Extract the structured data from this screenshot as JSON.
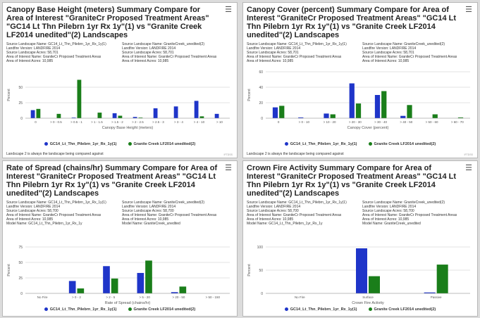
{
  "colors": {
    "series1": "#1f35c9",
    "series2": "#1a7e1a"
  },
  "icons": {
    "menu": "hamburger-menu-icon"
  },
  "panels": [
    {
      "title": "Canopy Base Height (meters) Summary Compare for Area of Interest \"GraniteCr Proposed Treatment Areas\" \"GC14 Lt Thn Pilebrn 1yr Rx 1y\"(1) vs \"Granite Creek LF2014 unedited\"(2) Landscapes",
      "meta": [
        [
          "Source Landscape Name: GC14_Lt_Thn_Pilebrn_1yr_Rx_1y(1)",
          "Source Landscape Name: GraniteCreek_unedited(2)"
        ],
        [
          "Landfire Version: LANDFIRE 2014",
          "Landfire Version: LANDFIRE 2014"
        ],
        [
          "Source Landscape Acres: 58,701",
          "Source Landscape Acres: 58,701"
        ],
        [
          "Area of Interest Name: GraniteCr Proposed Treatment Areas",
          "Area of Interest Name: GraniteCr Proposed Treatment Areas"
        ],
        [
          "Area of Interest Acres: 10,985",
          "Area of Interest Acres: 10,985"
        ]
      ],
      "legend": [
        "GC14_Lt_Thn_Pilebrn_1yr_Rx_1y(1)",
        "Granite Creek LF2014 unedited(2)"
      ],
      "footnote": "Landscape 2 is always the landscape being compared against",
      "credit": "IFTDSS"
    },
    {
      "title": "Canopy Cover (percent) Summary Compare for Area of Interest \"GraniteCr Proposed Treatment Areas\" \"GC14 Lt Thn Pilebrn 1yr Rx 1y\"(1) vs \"Granite Creek LF2014 unedited\"(2) Landscapes",
      "meta": [
        [
          "Source Landscape Name: GC14_Lt_Thn_Pilebrn_1yr_Rx_1y(1)",
          "Source Landscape Name: GraniteCreek_unedited(2)"
        ],
        [
          "Landfire Version: LANDFIRE 2014",
          "Landfire Version: LANDFIRE 2014"
        ],
        [
          "Source Landscape Acres: 58,701",
          "Source Landscape Acres: 58,701"
        ],
        [
          "Area of Interest Name: GraniteCr Proposed Treatment Areas",
          "Area of Interest Name: GraniteCr Proposed Treatment Areas"
        ],
        [
          "Area of Interest Acres: 10,985",
          "Area of Interest Acres: 10,985"
        ]
      ],
      "legend": [
        "GC14_Lt_Thn_Pilebrn_1yr_Rx_1y(1)",
        "Granite Creek LF2014 unedited(2)"
      ],
      "footnote": "Landscape 2 is always the landscape being compared against",
      "credit": "IFTDSS"
    },
    {
      "title": "Rate of Spread (chains/hr) Summary Compare for Area of Interest \"GraniteCr Proposed Treatment Areas\" \"GC14 Lt Thn Pilebrn 1yr Rx 1y\"(1) vs \"Granite Creek LF2014 unedited\"(2) Landscapes",
      "meta": [
        [
          "Source Landscape Name: GC14_Lt_Thn_Pilebrn_1yr_Rx_1y(1)",
          "Source Landscape Name: GraniteCreek_unedited(2)"
        ],
        [
          "Landfire Version: LANDFIRE 2014",
          "Landfire Version: LANDFIRE 2014"
        ],
        [
          "Source Landscape Acres: 58,700",
          "Source Landscape Acres: 58,700"
        ],
        [
          "Area of Interest Name: GraniteCr Proposed Treatment Areas",
          "Area of Interest Name: GraniteCr Proposed Treatment Areas"
        ],
        [
          "Area of Interest Acres: 10,985",
          "Area of Interest Acres: 10,985"
        ],
        [
          "Model Name: GC14_Lt_Thn_Pilebrn_1yr_Rx_1y",
          "Model Name: GraniteCreek_unedited"
        ]
      ],
      "legend": [
        "GC14_Lt_Thn_Pilebrn_1yr_Rx_1y(1)",
        "Granite Creek LF2014 unedited(2)"
      ]
    },
    {
      "title": "Crown Fire Activity Summary Compare for Area of Interest \"GraniteCr Proposed Treatment Areas\" \"GC14 Lt Thn Pilebrn 1yr Rx 1y\"(1) vs \"Granite Creek LF2014 unedited\"(2) Landscapes",
      "meta": [
        [
          "Source Landscape Name: GC14_Lt_Thn_Pilebrn_1yr_Rx_1y(1)",
          "Source Landscape Name: GraniteCreek_unedited(2)"
        ],
        [
          "Landfire Version: LANDFIRE 2014",
          "Landfire Version: LANDFIRE 2014"
        ],
        [
          "Source Landscape Acres: 58,700",
          "Source Landscape Acres: 58,700"
        ],
        [
          "Area of Interest Name: GraniteCr Proposed Treatment Areas",
          "Area of Interest Name: GraniteCr Proposed Treatment Areas"
        ],
        [
          "Area of Interest Acres: 10,985",
          "Area of Interest Acres: 10,985"
        ],
        [
          "Model Name: GC14_Lt_Thn_Pilebrn_1yr_Rx_1y",
          "Model Name: GraniteCreek_unedited"
        ]
      ],
      "legend": [
        "GC14_Lt_Thn_Pilebrn_1yr_Rx_1y(1)",
        "Granite Creek LF2014 unedited(2)"
      ]
    }
  ],
  "chart_data": [
    {
      "type": "bar",
      "xlabel": "Canopy Base Height (meters)",
      "ylabel": "Percent",
      "ylim": [
        0,
        75
      ],
      "yticks": [
        0,
        25,
        50
      ],
      "categories": [
        "0",
        "> 0 - 0.5",
        "> 0.5 - 1",
        "> 1 - 1.5",
        "> 1.5 - 2",
        "> 2 - 2.5",
        "> 2.5 - 3",
        "> 3 - 4",
        "> 4 - 10",
        "> 10"
      ],
      "series": [
        {
          "name": "GC14_Lt_Thn_Pilebrn_1yr_Rx_1y(1)",
          "values": [
            13,
            0,
            1,
            0,
            8,
            2,
            16,
            19,
            28,
            7
          ]
        },
        {
          "name": "Granite Creek LF2014 unedited(2)",
          "values": [
            15,
            7,
            62,
            9,
            4,
            1,
            0,
            0,
            3,
            0
          ]
        }
      ],
      "grid": true
    },
    {
      "type": "bar",
      "xlabel": "Canopy Cover (percent)",
      "ylabel": "Percent",
      "ylim": [
        0,
        60
      ],
      "yticks": [
        0,
        20,
        40,
        60
      ],
      "categories": [
        "0",
        "> 0 - 10",
        "> 10 - 20",
        "> 20 - 30",
        "> 30 - 40",
        "> 40 - 50",
        "> 50 - 60",
        "> 60 - 70"
      ],
      "series": [
        {
          "name": "GC14_Lt_Thn_Pilebrn_1yr_Rx_1y(1)",
          "values": [
            14,
            1,
            6,
            45,
            30,
            3,
            0,
            0
          ]
        },
        {
          "name": "Granite Creek LF2014 unedited(2)",
          "values": [
            16,
            0,
            5,
            19,
            35,
            17,
            5,
            1
          ]
        }
      ],
      "grid": true
    },
    {
      "type": "bar",
      "xlabel": "Rate of Spread (chains/hr)",
      "ylabel": "Percent",
      "ylim": [
        0,
        75
      ],
      "yticks": [
        0,
        25,
        50,
        75
      ],
      "categories": [
        "No Fire",
        "> 0 - 2",
        "> 2 - 5",
        "> 5 - 20",
        "> 20 - 50",
        "> 50 - 150"
      ],
      "series": [
        {
          "name": "GC14_Lt_Thn_Pilebrn_1yr_Rx_1y(1)",
          "values": [
            0,
            20,
            44,
            33,
            2,
            0
          ]
        },
        {
          "name": "Granite Creek LF2014 unedited(2)",
          "values": [
            0,
            8,
            24,
            53,
            11,
            0
          ]
        }
      ],
      "grid": true
    },
    {
      "type": "bar",
      "xlabel": "Crown Fire Activity",
      "ylabel": "Percent",
      "ylim": [
        0,
        100
      ],
      "yticks": [
        0,
        50,
        100
      ],
      "categories": [
        "No Fire",
        "Surface",
        "Passive"
      ],
      "series": [
        {
          "name": "GC14_Lt_Thn_Pilebrn_1yr_Rx_1y(1)",
          "values": [
            0,
            97,
            2
          ]
        },
        {
          "name": "Granite Creek LF2014 unedited(2)",
          "values": [
            0,
            37,
            62
          ]
        }
      ],
      "grid": true
    }
  ]
}
